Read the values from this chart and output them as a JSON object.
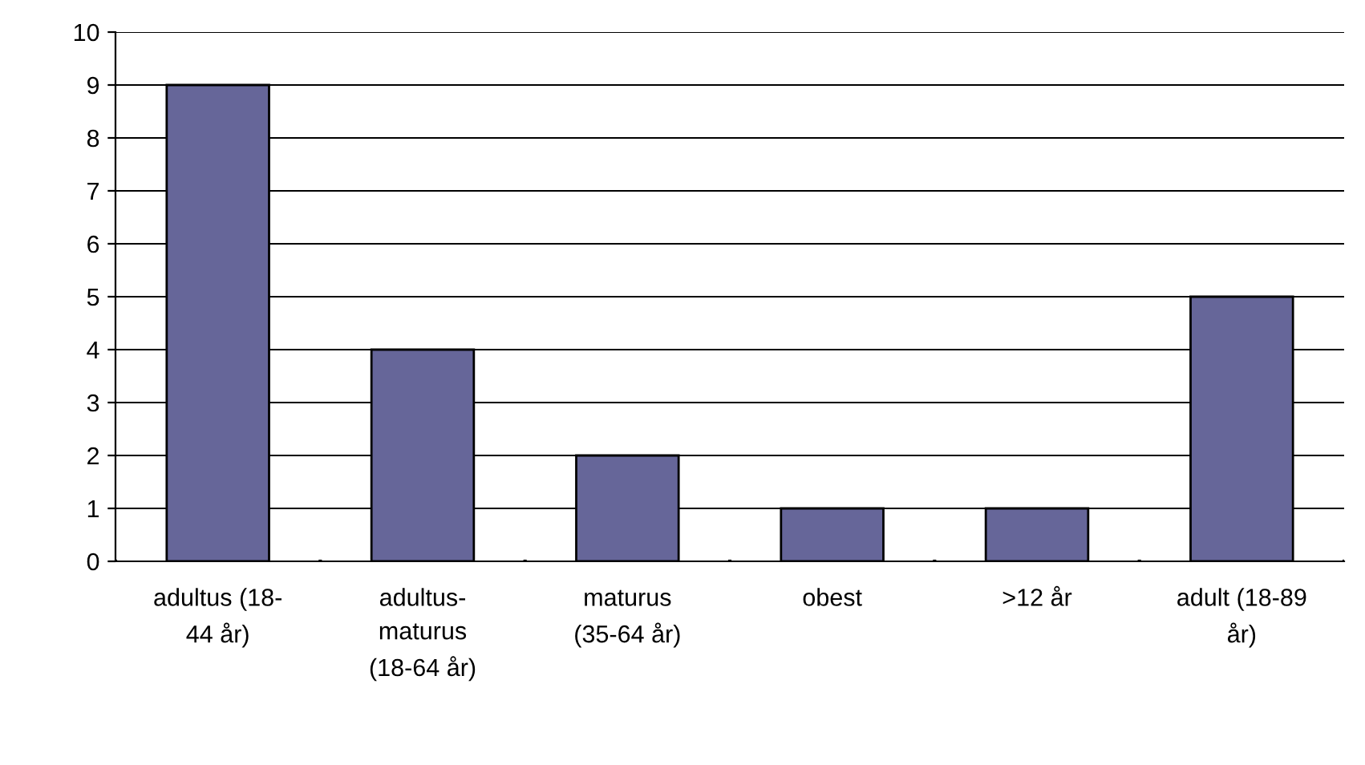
{
  "chart_data": {
    "type": "bar",
    "categories": [
      "adultus (18-\n44 år)",
      "adultus-\nmaturus\n(18-64 år)",
      "maturus\n(35-64 år)",
      "obest",
      ">12 år",
      "adult (18-89\når)"
    ],
    "values": [
      9,
      4,
      2,
      1,
      1,
      5
    ],
    "color": "#666699",
    "ylim": [
      0,
      10
    ],
    "yticks": [
      0,
      1,
      2,
      3,
      4,
      5,
      6,
      7,
      8,
      9,
      10
    ],
    "grid": "y",
    "legend": false
  }
}
